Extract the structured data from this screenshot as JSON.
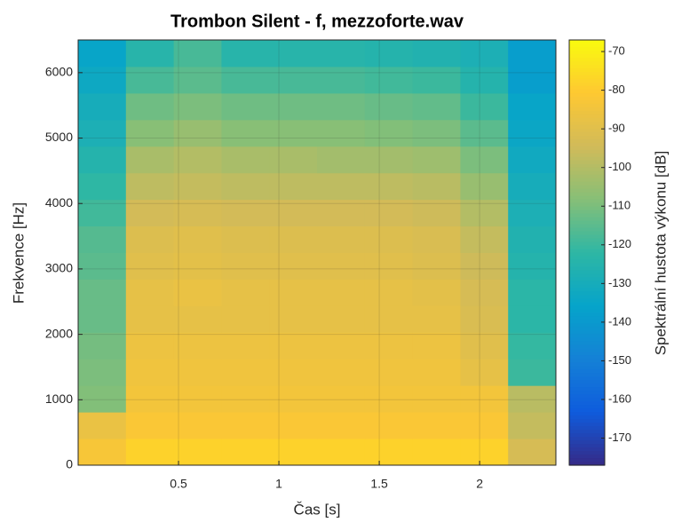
{
  "chart_data": {
    "type": "heatmap",
    "title": "Trombon Silent - f, mezzoforte.wav",
    "x_label": "Čas [s]",
    "y_label": "Frekvence [Hz]",
    "colorbar_label": "Spektrální hustota výkonu [dB]",
    "x": [
      0,
      0.238,
      0.476,
      0.714,
      0.952,
      1.19,
      1.428,
      1.666,
      1.904,
      2.142,
      2.38
    ],
    "y": [
      0,
      406.25,
      812.5,
      1218.75,
      1625,
      2031.25,
      2437.5,
      2843.75,
      3250,
      3656.25,
      4062.5,
      4468.75,
      4875,
      5281.25,
      5687.5,
      6093.75,
      6500
    ],
    "values": [
      [
        -83,
        -78,
        -78,
        -78,
        -78,
        -78,
        -78,
        -78,
        -78,
        -93
      ],
      [
        -87,
        -82,
        -82,
        -82,
        -82,
        -82,
        -82,
        -82,
        -82,
        -97
      ],
      [
        -109,
        -84,
        -84,
        -84,
        -84,
        -84,
        -84,
        -84,
        -84,
        -99
      ],
      [
        -110,
        -85,
        -85,
        -85,
        -85,
        -85,
        -85,
        -85,
        -88,
        -120
      ],
      [
        -111,
        -86,
        -86,
        -86,
        -86,
        -86,
        -86,
        -86,
        -90,
        -121
      ],
      [
        -113,
        -88,
        -88,
        -88,
        -88,
        -88,
        -88,
        -88,
        -92,
        -123
      ],
      [
        -113,
        -88,
        -87,
        -88,
        -88,
        -88,
        -88,
        -89,
        -93,
        -123
      ],
      [
        -115,
        -90,
        -89,
        -90,
        -90,
        -90,
        -90,
        -91,
        -95,
        -125
      ],
      [
        -116,
        -91,
        -90,
        -91,
        -91,
        -91,
        -91,
        -92,
        -97,
        -126
      ],
      [
        -119,
        -94,
        -93,
        -94,
        -94,
        -94,
        -94,
        -95,
        -100,
        -128
      ],
      [
        -122,
        -98,
        -97,
        -98,
        -98,
        -98,
        -98,
        -99,
        -105,
        -130
      ],
      [
        -125,
        -102,
        -100,
        -102,
        -102,
        -103,
        -103,
        -104,
        -110,
        -132
      ],
      [
        -128,
        -108,
        -105,
        -108,
        -108,
        -108,
        -109,
        -110,
        -115,
        -134
      ],
      [
        -130,
        -112,
        -110,
        -112,
        -112,
        -112,
        -113,
        -114,
        -120,
        -135
      ],
      [
        -133,
        -118,
        -115,
        -118,
        -118,
        -118,
        -119,
        -120,
        -125,
        -138
      ],
      [
        -135,
        -124,
        -118,
        -124,
        -124,
        -124,
        -125,
        -126,
        -128,
        -138
      ]
    ],
    "xlim": [
      0,
      2.38
    ],
    "xticks": [
      0.5,
      1,
      1.5,
      2
    ],
    "ylim": [
      0,
      6500
    ],
    "yticks": [
      0,
      1000,
      2000,
      3000,
      4000,
      5000,
      6000
    ],
    "clim": [
      -177,
      -67
    ],
    "cticks": [
      -170,
      -160,
      -150,
      -140,
      -130,
      -120,
      -110,
      -100,
      -90,
      -80,
      -70
    ],
    "colormap": [
      "#352a87",
      "#0f5cdd",
      "#1481d6",
      "#06a4ca",
      "#2eb7a4",
      "#87bf77",
      "#d1bb59",
      "#fec832",
      "#f9fb0e"
    ],
    "grid": true
  }
}
